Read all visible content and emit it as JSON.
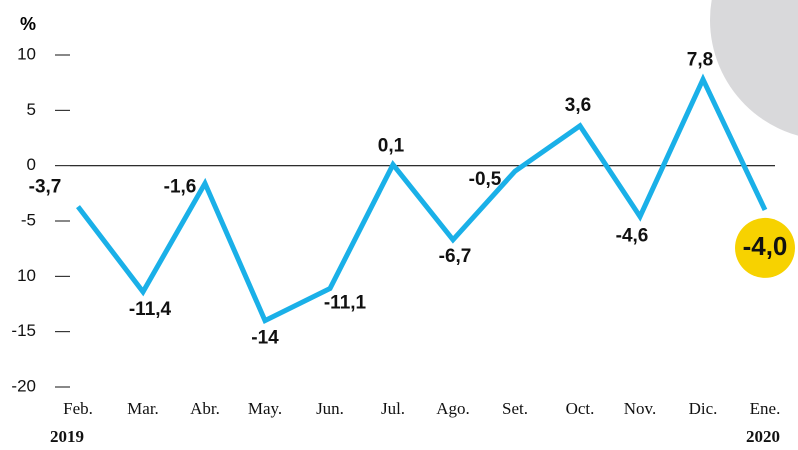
{
  "chart_data": {
    "type": "line",
    "unit_label": "%",
    "categories": [
      "Feb.",
      "Mar.",
      "Abr.",
      "May.",
      "Jun.",
      "Jul.",
      "Ago.",
      "Set.",
      "Oct.",
      "Nov.",
      "Dic.",
      "Ene."
    ],
    "year_labels": [
      "2019",
      "2020"
    ],
    "values": [
      -3.7,
      -11.4,
      -1.6,
      -14,
      -11.1,
      0.1,
      -6.7,
      -0.5,
      3.6,
      -4.6,
      7.8,
      -4.0
    ],
    "value_labels": [
      "-3,7",
      "-11,4",
      "-1,6",
      "-14",
      "-11,1",
      "0,1",
      "-6,7",
      "-0,5",
      "3,6",
      "-4,6",
      "7,8",
      "-4,0"
    ],
    "color": "#1ab0e8",
    "highlight_color": "#f7d200",
    "ylim": [
      -20,
      10
    ],
    "yticks": [
      10,
      5,
      0,
      -5,
      {
        "value": -10,
        "label": "10"
      },
      -15,
      -20
    ]
  }
}
